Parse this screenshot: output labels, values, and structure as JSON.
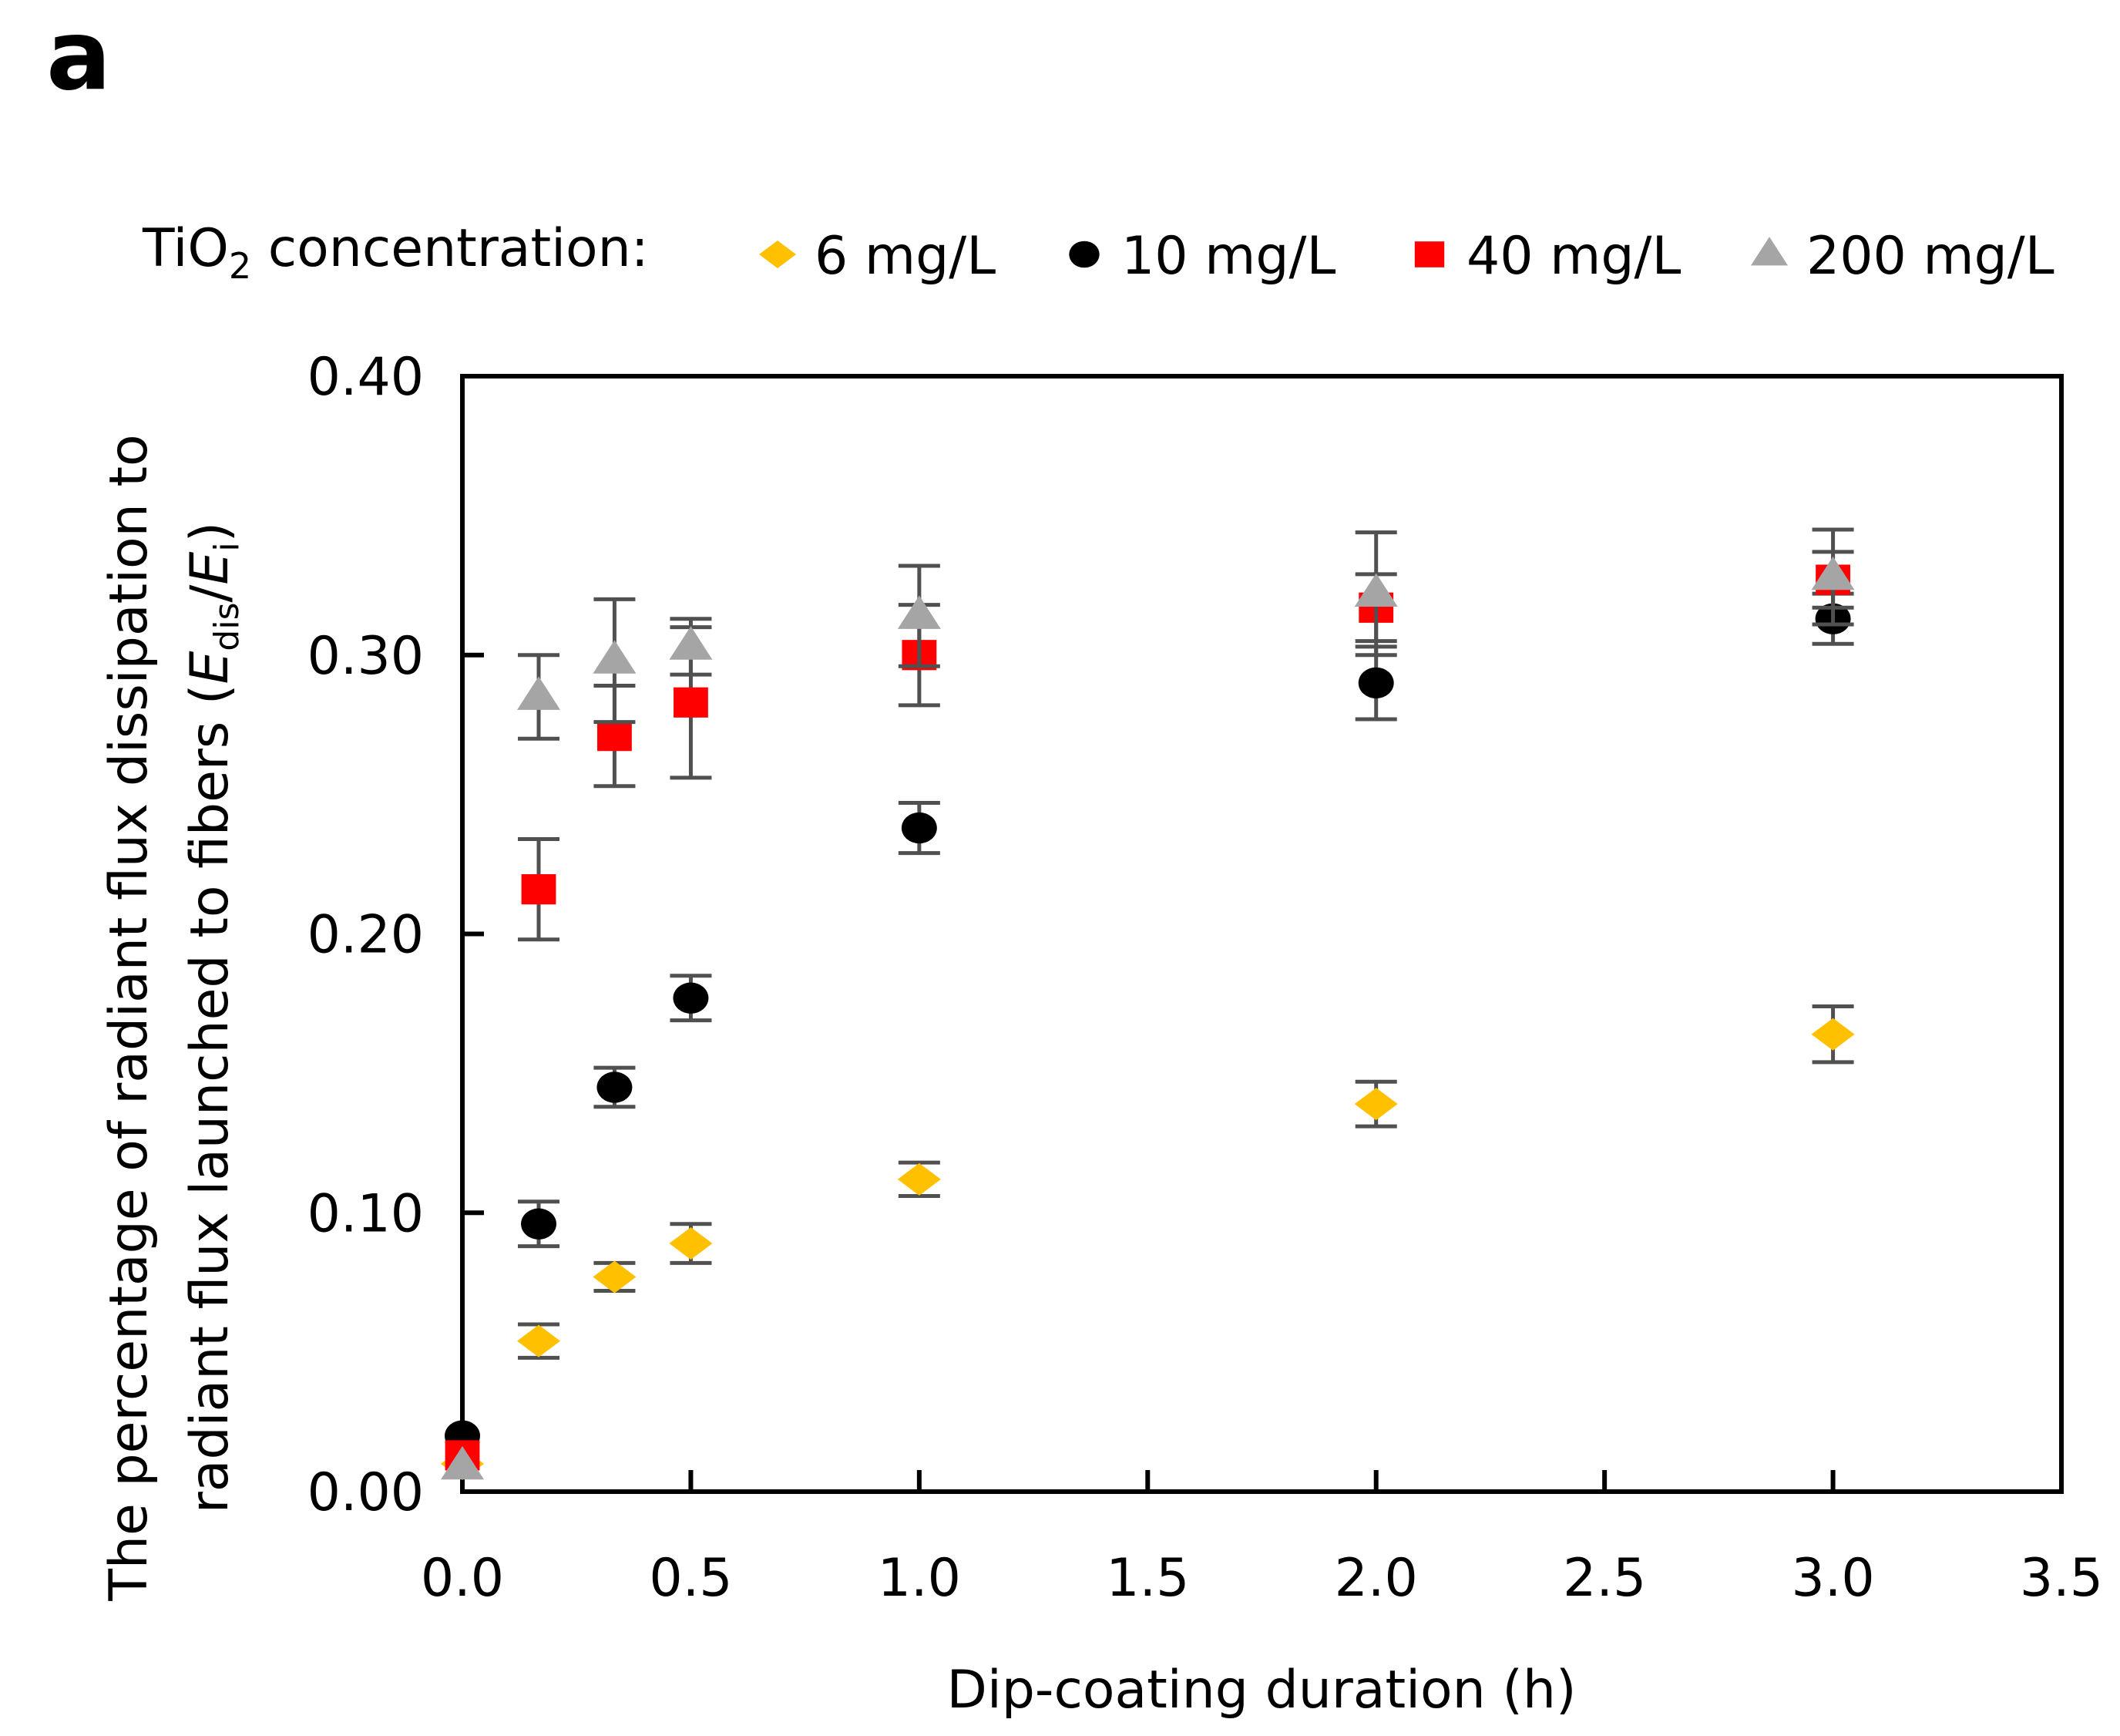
{
  "panel_label": "a",
  "legend": {
    "prefix": "TiO",
    "prefix_sub": "2",
    "prefix_suffix": " concentration:"
  },
  "axis_labels": {
    "y_line1": "The percentage of radiant flux dissipation to",
    "y_line2_main": "radiant flux launched to fibers (",
    "y_E1": "E",
    "y_sub1": "dis",
    "y_slash": "/",
    "y_E2": "E",
    "y_sub2": "i",
    "y_close": ")",
    "x": "Dip-coating duration (h)"
  },
  "chart_data": {
    "type": "scatter",
    "title": "",
    "xlabel": "Dip-coating duration (h)",
    "ylabel": "The percentage of radiant flux dissipation to radiant flux launched to fibers (Edis/Ei)",
    "xlim": [
      0,
      3.5
    ],
    "ylim": [
      0,
      0.4
    ],
    "xticks": [
      "0.0",
      "0.5",
      "1.0",
      "1.5",
      "2.0",
      "2.5",
      "3.0",
      "3.5"
    ],
    "yticks": [
      "0.00",
      "0.10",
      "0.20",
      "0.30",
      "0.40"
    ],
    "legend_position": "top",
    "grid": false,
    "x": [
      0,
      0.167,
      0.333,
      0.5,
      1.0,
      2.0,
      3.0
    ],
    "series": [
      {
        "name": "6 mg/L",
        "marker": "diamond",
        "color": "#FFC000",
        "values": [
          0.01,
          0.054,
          0.077,
          0.089,
          0.112,
          0.139,
          0.164
        ],
        "errors": [
          0.0,
          0.006,
          0.005,
          0.007,
          0.006,
          0.008,
          0.01
        ]
      },
      {
        "name": "10 mg/L",
        "marker": "circle",
        "color": "#000000",
        "values": [
          0.02,
          0.096,
          0.145,
          0.177,
          0.238,
          0.29,
          0.313
        ],
        "errors": [
          0.0,
          0.008,
          0.007,
          0.008,
          0.009,
          0.013,
          0.009
        ]
      },
      {
        "name": "40 mg/L",
        "marker": "square",
        "color": "#FF0000",
        "values": [
          0.013,
          0.216,
          0.271,
          0.283,
          0.3,
          0.317,
          0.327
        ],
        "errors": [
          0.0,
          0.018,
          0.018,
          0.027,
          0.018,
          0.012,
          0.01
        ]
      },
      {
        "name": "200 mg/L",
        "marker": "triangle",
        "color": "#A5A5A5",
        "values": [
          0.009,
          0.285,
          0.298,
          0.303,
          0.314,
          0.322,
          0.328
        ],
        "errors": [
          0.0,
          0.015,
          0.022,
          0.01,
          0.018,
          0.022,
          0.017
        ]
      }
    ]
  }
}
